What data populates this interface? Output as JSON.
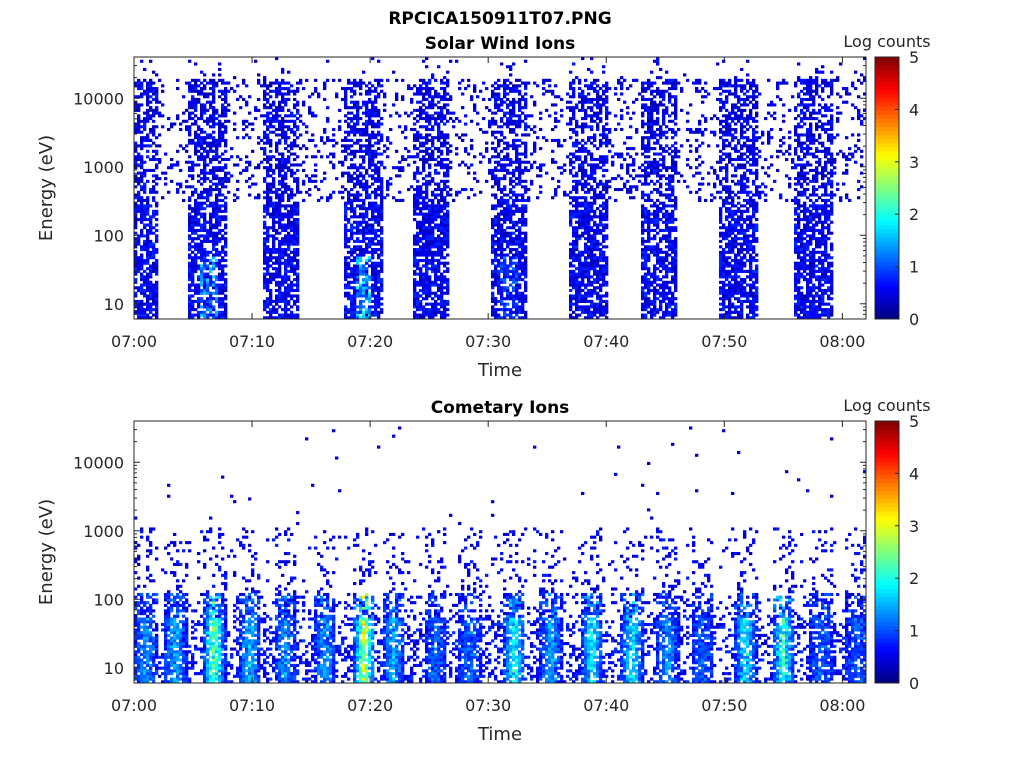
{
  "figure_title": "RPCICA150911T07.PNG",
  "colors": {
    "colormap": "jet",
    "axis": "#262626",
    "background": "#ffffff"
  },
  "chart_data": [
    {
      "type": "heatmap",
      "title": "Solar Wind Ions",
      "xlabel": "Time",
      "ylabel": "Energy (eV)",
      "y_scale": "log",
      "ylim": [
        6,
        40000
      ],
      "xlim": [
        "07:00",
        "08:02"
      ],
      "x_ticks": [
        "07:00",
        "07:10",
        "07:20",
        "07:30",
        "07:40",
        "07:50",
        "08:00"
      ],
      "y_ticks": [
        "10",
        "100",
        "1000",
        "10000"
      ],
      "colorbar": {
        "label": "Log counts",
        "range": [
          0,
          5
        ],
        "ticks": [
          "0",
          "1",
          "2",
          "3",
          "4",
          "5"
        ]
      },
      "grid": false,
      "bursts": [
        {
          "time": "07:00.5",
          "log_counts_peak": 1.0
        },
        {
          "time": "07:06.3",
          "log_counts_peak": 2.0
        },
        {
          "time": "07:12.5",
          "log_counts_peak": 1.0
        },
        {
          "time": "07:19.5",
          "log_counts_peak": 2.3
        },
        {
          "time": "07:25.2",
          "log_counts_peak": 1.0
        },
        {
          "time": "07:31.8",
          "log_counts_peak": 1.5
        },
        {
          "time": "07:38.5",
          "log_counts_peak": 1.0
        },
        {
          "time": "07:44.5",
          "log_counts_peak": 1.0
        },
        {
          "time": "07:51.2",
          "log_counts_peak": 1.0
        },
        {
          "time": "07:57.5",
          "log_counts_peak": 1.0
        }
      ]
    },
    {
      "type": "heatmap",
      "title": "Cometary Ions",
      "xlabel": "Time",
      "ylabel": "Energy (eV)",
      "y_scale": "log",
      "ylim": [
        6,
        40000
      ],
      "xlim": [
        "07:00",
        "08:02"
      ],
      "x_ticks": [
        "07:00",
        "07:10",
        "07:20",
        "07:30",
        "07:40",
        "07:50",
        "08:00"
      ],
      "y_ticks": [
        "10",
        "100",
        "1000",
        "10000"
      ],
      "colorbar": {
        "label": "Log counts",
        "range": [
          0,
          5
        ],
        "ticks": [
          "0",
          "1",
          "2",
          "3",
          "4",
          "5"
        ]
      },
      "grid": false,
      "bursts": [
        {
          "time": "07:01.0",
          "log_counts_peak": 1.8
        },
        {
          "time": "07:03.5",
          "log_counts_peak": 2.0
        },
        {
          "time": "07:06.8",
          "log_counts_peak": 3.2
        },
        {
          "time": "07:09.8",
          "log_counts_peak": 2.0
        },
        {
          "time": "07:12.8",
          "log_counts_peak": 1.8
        },
        {
          "time": "07:16.2",
          "log_counts_peak": 1.8
        },
        {
          "time": "07:19.5",
          "log_counts_peak": 3.8
        },
        {
          "time": "07:22.0",
          "log_counts_peak": 2.0
        },
        {
          "time": "07:25.5",
          "log_counts_peak": 1.5
        },
        {
          "time": "07:28.5",
          "log_counts_peak": 1.5
        },
        {
          "time": "07:32.2",
          "log_counts_peak": 2.5
        },
        {
          "time": "07:35.3",
          "log_counts_peak": 2.0
        },
        {
          "time": "07:38.8",
          "log_counts_peak": 2.4
        },
        {
          "time": "07:42.2",
          "log_counts_peak": 2.4
        },
        {
          "time": "07:45.2",
          "log_counts_peak": 1.8
        },
        {
          "time": "07:48.2",
          "log_counts_peak": 1.5
        },
        {
          "time": "07:51.8",
          "log_counts_peak": 2.4
        },
        {
          "time": "07:55.0",
          "log_counts_peak": 2.8
        },
        {
          "time": "07:58.2",
          "log_counts_peak": 1.5
        },
        {
          "time": "08:01.2",
          "log_counts_peak": 1.5
        }
      ]
    }
  ]
}
